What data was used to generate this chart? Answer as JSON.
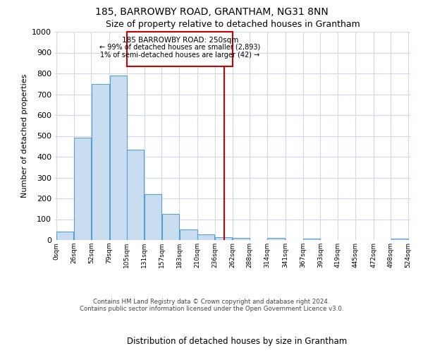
{
  "title": "185, BARROWBY ROAD, GRANTHAM, NG31 8NN",
  "subtitle": "Size of property relative to detached houses in Grantham",
  "xlabel": "Distribution of detached houses by size in Grantham",
  "ylabel": "Number of detached properties",
  "bin_edges": [
    0,
    26,
    52,
    79,
    105,
    131,
    157,
    183,
    210,
    236,
    262,
    288,
    314,
    341,
    367,
    393,
    419,
    445,
    472,
    498,
    524
  ],
  "bar_heights": [
    40,
    490,
    750,
    790,
    435,
    220,
    127,
    50,
    27,
    14,
    10,
    0,
    10,
    0,
    8,
    0,
    0,
    0,
    0,
    8
  ],
  "bar_color": "#c9ddf0",
  "bar_edge_color": "#5a9fd4",
  "vline_x": 250,
  "vline_color": "#cc0000",
  "ylim": [
    0,
    1000
  ],
  "yticks": [
    0,
    100,
    200,
    300,
    400,
    500,
    600,
    700,
    800,
    900,
    1000
  ],
  "annotation_title": "185 BARROWBY ROAD: 250sqm",
  "annotation_line1": "← 99% of detached houses are smaller (2,893)",
  "annotation_line2": "1% of semi-detached houses are larger (42) →",
  "xtick_labels": [
    "0sqm",
    "26sqm",
    "52sqm",
    "79sqm",
    "105sqm",
    "131sqm",
    "157sqm",
    "183sqm",
    "210sqm",
    "236sqm",
    "262sqm",
    "288sqm",
    "314sqm",
    "341sqm",
    "367sqm",
    "393sqm",
    "419sqm",
    "445sqm",
    "472sqm",
    "498sqm",
    "524sqm"
  ],
  "footer_line1": "Contains HM Land Registry data © Crown copyright and database right 2024.",
  "footer_line2": "Contains public sector information licensed under the Open Government Licence v3.0.",
  "background_color": "#ffffff",
  "grid_color": "#d0d8e8"
}
